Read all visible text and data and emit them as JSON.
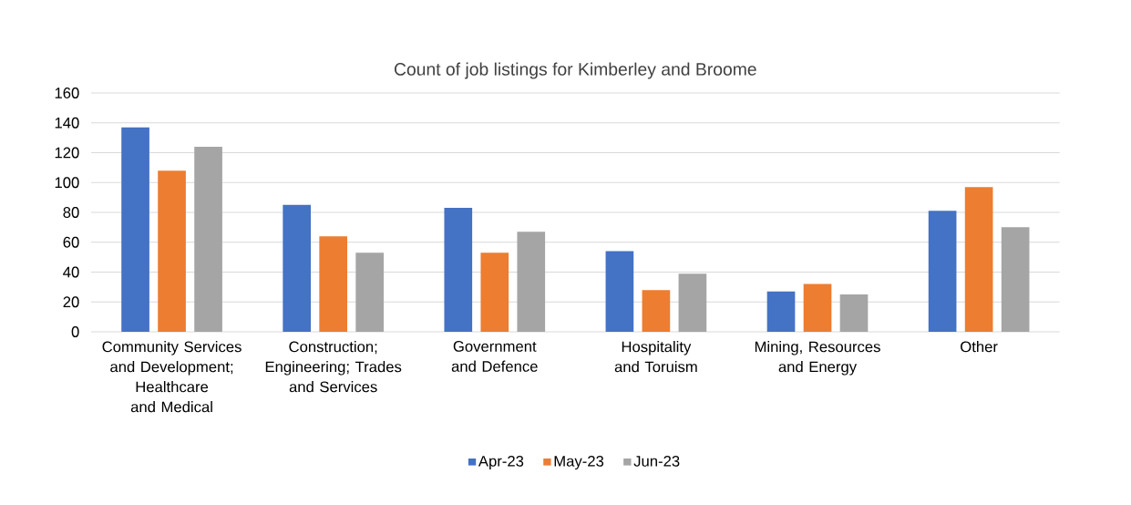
{
  "chart_data": {
    "type": "bar",
    "title": "Count of job listings for Kimberley and Broome",
    "categories": [
      "Community Services and Development; Healthcare and Medical",
      "Construction; Engineering; Trades and Services",
      "Government and Defence",
      "Hospitality and Toruism",
      "Mining, Resources and Energy",
      "Other"
    ],
    "series": [
      {
        "name": "Apr-23",
        "color": "#4472c4",
        "values": [
          137,
          85,
          83,
          54,
          27,
          81
        ]
      },
      {
        "name": "May-23",
        "color": "#ed7d31",
        "values": [
          108,
          64,
          53,
          28,
          32,
          97
        ]
      },
      {
        "name": "Jun-23",
        "color": "#a5a5a5",
        "values": [
          124,
          53,
          67,
          39,
          25,
          70
        ]
      }
    ],
    "ylim": [
      0,
      160
    ],
    "yticks": [
      0,
      20,
      40,
      60,
      80,
      100,
      120,
      140,
      160
    ],
    "grid": "y",
    "legend": "bottom"
  }
}
